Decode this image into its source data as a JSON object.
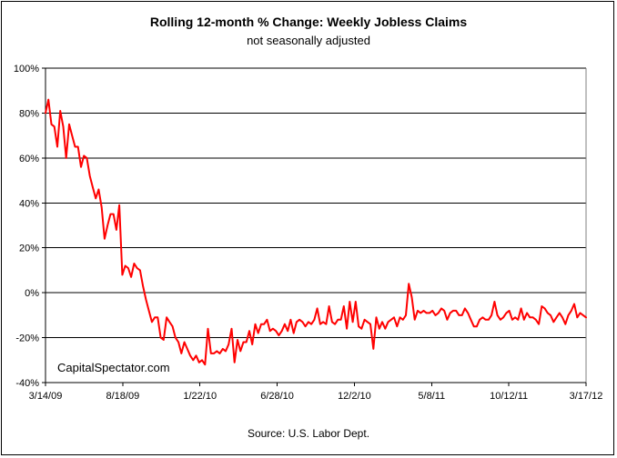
{
  "title": "Rolling 12-month %  Change: Weekly Jobless Claims",
  "subtitle": "not seasonally adjusted",
  "source": "Source: U.S. Labor Dept.",
  "watermark": "CapitalSpectator.com",
  "colors": {
    "line": "#ff0000",
    "grid": "#000000"
  },
  "chart_data": {
    "type": "line",
    "title": "Rolling 12-month %  Change: Weekly Jobless Claims",
    "subtitle": "not seasonally adjusted",
    "xlabel": "",
    "ylabel": "",
    "x_tick_labels": [
      "3/14/09",
      "8/18/09",
      "1/22/10",
      "6/28/10",
      "12/2/10",
      "5/8/11",
      "10/12/11",
      "3/17/12"
    ],
    "y_tick_labels": [
      "-40%",
      "-20%",
      "0%",
      "20%",
      "40%",
      "60%",
      "80%",
      "100%"
    ],
    "ylim": [
      -40,
      100
    ],
    "grid": "horizontal",
    "legend": "none",
    "series": [
      {
        "values": [
          80,
          86,
          75,
          74,
          65,
          81,
          74,
          60,
          75,
          70,
          65,
          65,
          56,
          61,
          60,
          52,
          47,
          42,
          46,
          38,
          24,
          30,
          35,
          35,
          28,
          39,
          8,
          12,
          11,
          7,
          13,
          11,
          10,
          3,
          -3,
          -8,
          -13,
          -11,
          -11,
          -20,
          -21,
          -11,
          -13,
          -15,
          -20,
          -22,
          -27,
          -22,
          -25,
          -28,
          -30,
          -28,
          -31,
          -30,
          -32,
          -16,
          -27,
          -27,
          -26,
          -27,
          -25,
          -26,
          -23,
          -16,
          -31,
          -21,
          -26,
          -22,
          -22,
          -17,
          -23,
          -14,
          -18,
          -14,
          -14,
          -12,
          -17,
          -16,
          -17,
          -19,
          -17,
          -14,
          -17,
          -12,
          -18,
          -13,
          -12,
          -13,
          -15,
          -13,
          -14,
          -12,
          -7,
          -14,
          -13,
          -14,
          -6,
          -13,
          -14,
          -12,
          -12,
          -6,
          -16,
          -4,
          -13,
          -4,
          -15,
          -16,
          -12,
          -13,
          -14,
          -25,
          -11,
          -16,
          -13,
          -16,
          -13,
          -12,
          -11,
          -15,
          -11,
          -12,
          -10,
          4,
          -2,
          -12,
          -8,
          -9,
          -8,
          -9,
          -9,
          -8,
          -10,
          -9,
          -7,
          -8,
          -12,
          -9,
          -8,
          -8,
          -10,
          -10,
          -7,
          -9,
          -12,
          -15,
          -15,
          -12,
          -11,
          -12,
          -12,
          -10,
          -4,
          -10,
          -12,
          -11,
          -9,
          -8,
          -12,
          -11,
          -12,
          -7,
          -12,
          -9,
          -11,
          -11,
          -12,
          -14,
          -6,
          -7,
          -9,
          -10,
          -13,
          -11,
          -9,
          -11,
          -14,
          -10,
          -8,
          -5,
          -11,
          -9,
          -10,
          -11
        ]
      }
    ]
  }
}
